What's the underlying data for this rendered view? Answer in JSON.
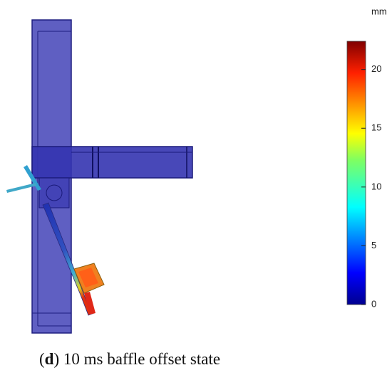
{
  "colorbar": {
    "unit": "mm",
    "lim": [
      0,
      22.4
    ],
    "ticks": [
      0,
      5,
      10,
      15,
      20
    ]
  },
  "caption": {
    "open": "(",
    "label": "d",
    "close": ")",
    "text": "10 ms baffle offset state"
  }
}
